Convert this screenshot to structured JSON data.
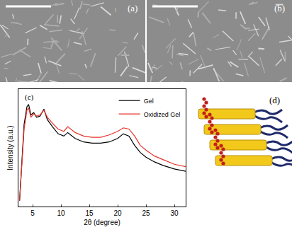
{
  "panels": [
    {
      "label": "(a)"
    },
    {
      "label": "(b)"
    },
    {
      "label": "(d)"
    }
  ],
  "chart_data": {
    "type": "line",
    "annotations": [
      "(c)"
    ],
    "x_label": "2θ (degree)",
    "y_label": "Intensity (a.u.)",
    "x": [
      2.7,
      3,
      3.5,
      4,
      4.3,
      4.7,
      5.2,
      5.7,
      6.3,
      7,
      7.6,
      8.5,
      9.5,
      10.5,
      11.2,
      12.5,
      14,
      15.5,
      17,
      18.5,
      20,
      21,
      22,
      23,
      24,
      25,
      26.5,
      28,
      30,
      32
    ],
    "series": [
      {
        "name": "Gel",
        "color": "#000000",
        "values": [
          0.05,
          0.3,
          0.7,
          0.85,
          0.87,
          0.78,
          0.8,
          0.76,
          0.77,
          0.83,
          0.74,
          0.68,
          0.62,
          0.6,
          0.63,
          0.58,
          0.55,
          0.54,
          0.54,
          0.55,
          0.58,
          0.62,
          0.6,
          0.52,
          0.46,
          0.42,
          0.38,
          0.35,
          0.32,
          0.3
        ]
      },
      {
        "name": "Oxidized Gel",
        "color": "#e8332a",
        "values": [
          0.05,
          0.28,
          0.66,
          0.82,
          0.84,
          0.76,
          0.79,
          0.77,
          0.78,
          0.82,
          0.76,
          0.71,
          0.66,
          0.64,
          0.68,
          0.63,
          0.6,
          0.59,
          0.59,
          0.61,
          0.64,
          0.67,
          0.66,
          0.6,
          0.52,
          0.48,
          0.43,
          0.4,
          0.36,
          0.34
        ]
      }
    ],
    "xlim": [
      2.5,
      32
    ],
    "xticks": [
      5,
      10,
      15,
      20,
      25,
      30
    ],
    "ylim": [
      0,
      1
    ],
    "yticks": [],
    "tick_labels": "x",
    "legend": "top right",
    "grid": false
  }
}
